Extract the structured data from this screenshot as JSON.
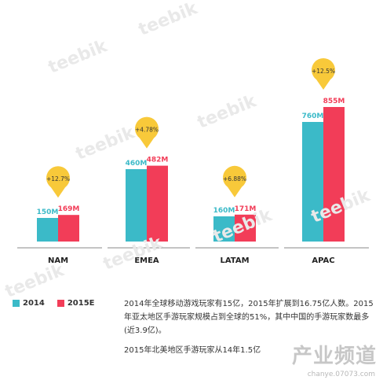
{
  "chart_data": {
    "type": "bar",
    "categories": [
      "NAM",
      "EMEA",
      "LATAM",
      "APAC"
    ],
    "series": [
      {
        "name": "2014",
        "values": [
          150,
          460,
          160,
          760
        ],
        "labels": [
          "150M",
          "460M",
          "160M",
          "760M"
        ],
        "color": "#3bbac8"
      },
      {
        "name": "2015E",
        "values": [
          169,
          482,
          171,
          855
        ],
        "labels": [
          "169M",
          "482M",
          "171M",
          "855M"
        ],
        "color": "#f23d58"
      }
    ],
    "growth": [
      "+12.7%",
      "+4.78%",
      "+6.88%",
      "+12.5%"
    ],
    "growth_color": "#f8c93a",
    "ylim": [
      0,
      900
    ],
    "grid": false,
    "legend": "bottom-left"
  },
  "notes": [
    "2014年全球移动游戏玩家有15亿，2015年扩展到16.75亿人数。2015年亚太地区手游玩家规模占到全球的51%，其中中国的手游玩家数最多(近3.9亿)。",
    "2015年北美地区手游玩家从14年1.5亿"
  ],
  "watermark": "teebik",
  "brand": {
    "name": "产业频道",
    "url": "chanye.07073.com"
  }
}
